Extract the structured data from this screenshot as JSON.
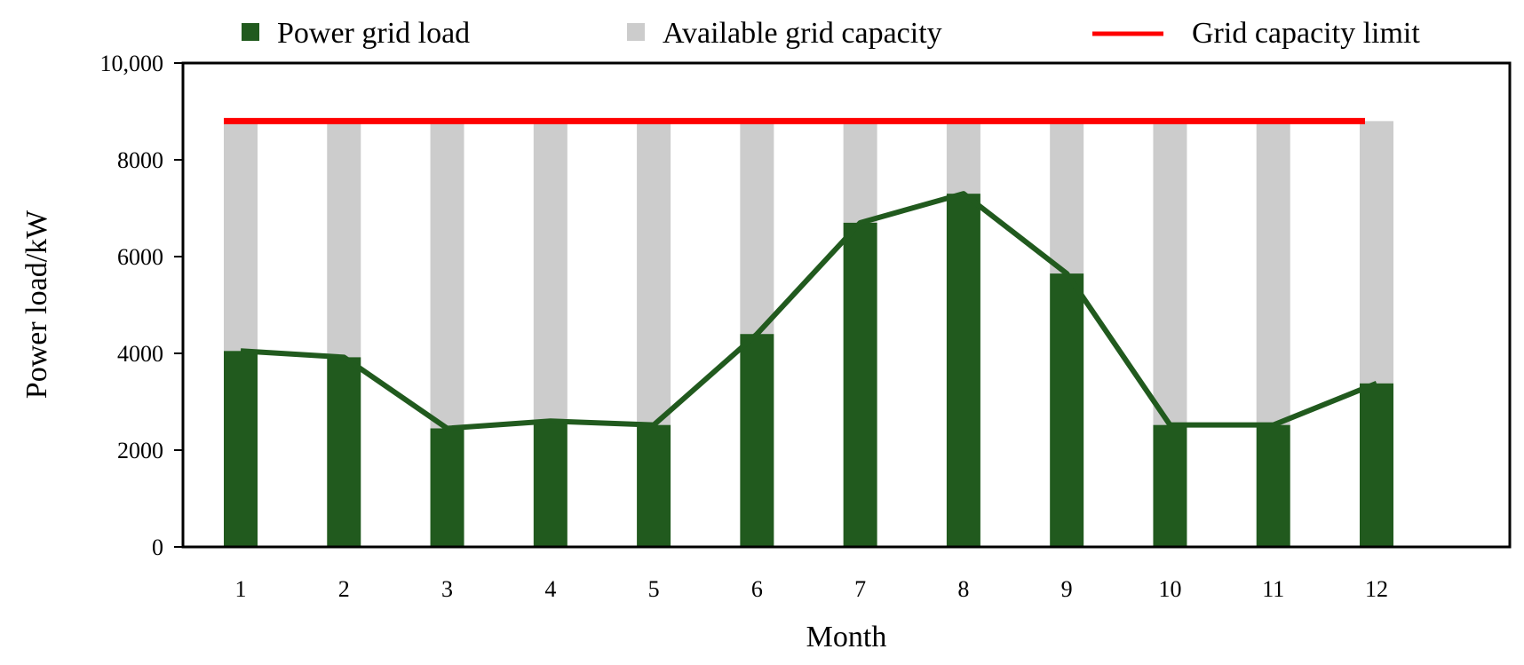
{
  "chart_data": {
    "type": "bar",
    "xlabel": "Month",
    "ylabel": "Power load/kW",
    "ylim": [
      0,
      10000
    ],
    "y_ticks": [
      "0",
      "2000",
      "4000",
      "6000",
      "8000",
      "10,000"
    ],
    "categories": [
      "1",
      "2",
      "3",
      "4",
      "5",
      "6",
      "7",
      "8",
      "9",
      "10",
      "11",
      "12"
    ],
    "series": [
      {
        "name": "Power grid load",
        "kind": "bar+line",
        "color": "#215a1e",
        "values": [
          4050,
          3920,
          2450,
          2600,
          2520,
          4400,
          6700,
          7300,
          5650,
          2520,
          2520,
          3380
        ]
      },
      {
        "name": "Available grid capacity",
        "kind": "stacked-bar",
        "color": "#cccccc",
        "values": [
          4750,
          4880,
          6350,
          6200,
          6280,
          4400,
          2100,
          1500,
          3150,
          6280,
          6280,
          5420
        ]
      },
      {
        "name": "Grid capacity limit",
        "kind": "line",
        "color": "#ff0000",
        "values": [
          8800,
          8800,
          8800,
          8800,
          8800,
          8800,
          8800,
          8800,
          8800,
          8800,
          8800,
          8800
        ]
      }
    ],
    "legend_position": "top",
    "grid": false
  }
}
